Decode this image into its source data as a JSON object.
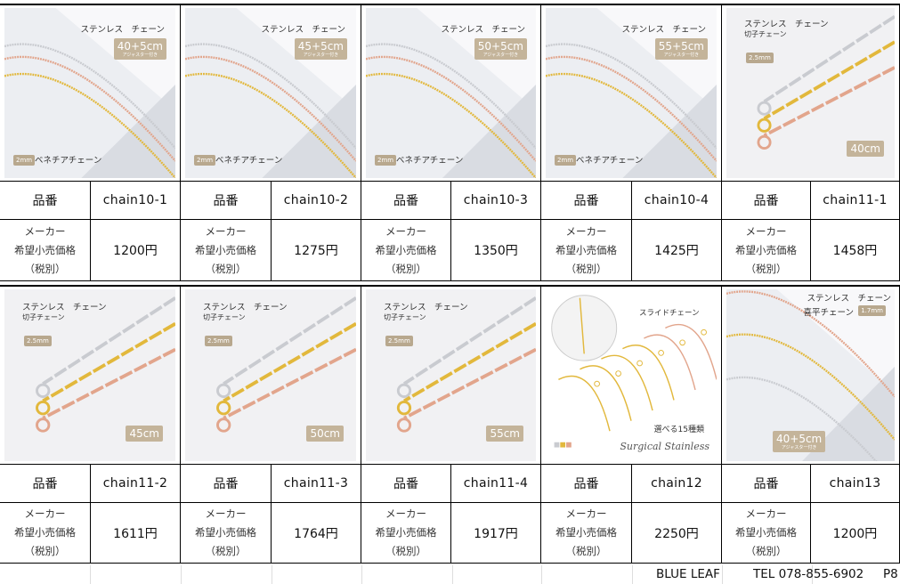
{
  "labels": {
    "item_no": "品番",
    "maker_line1": "メーカー",
    "maker_line2": "希望小売価格",
    "maker_line3": "（税別）"
  },
  "products": [
    {
      "code": "chain10-1",
      "price": "1200円",
      "image": {
        "style": "venetian",
        "title": "ステンレス　チェーン",
        "size": "40+5cm",
        "size_sub": "アジャスター付き",
        "mm": "2mm",
        "name": "ベネチアチェーン"
      }
    },
    {
      "code": "chain10-2",
      "price": "1275円",
      "image": {
        "style": "venetian",
        "title": "ステンレス　チェーン",
        "size": "45+5cm",
        "size_sub": "アジャスター付き",
        "mm": "2mm",
        "name": "ベネチアチェーン"
      }
    },
    {
      "code": "chain10-3",
      "price": "1350円",
      "image": {
        "style": "venetian",
        "title": "ステンレス　チェーン",
        "size": "50+5cm",
        "size_sub": "アジャスター付き",
        "mm": "2mm",
        "name": "ベネチアチェーン"
      }
    },
    {
      "code": "chain10-4",
      "price": "1425円",
      "image": {
        "style": "venetian",
        "title": "ステンレス　チェーン",
        "size": "55+5cm",
        "size_sub": "アジャスター付き",
        "mm": "2mm",
        "name": "ベネチアチェーン"
      }
    },
    {
      "code": "chain11-1",
      "price": "1458円",
      "image": {
        "style": "kiriko",
        "title": "ステンレス　チェーン",
        "name": "切子チェーン",
        "mm": "2.5mm",
        "size": "40cm"
      }
    },
    {
      "code": "chain11-2",
      "price": "1611円",
      "image": {
        "style": "kiriko",
        "title": "ステンレス　チェーン",
        "name": "切子チェーン",
        "mm": "2.5mm",
        "size": "45cm"
      }
    },
    {
      "code": "chain11-3",
      "price": "1764円",
      "image": {
        "style": "kiriko",
        "title": "ステンレス　チェーン",
        "name": "切子チェーン",
        "mm": "2.5mm",
        "size": "50cm"
      }
    },
    {
      "code": "chain11-4",
      "price": "1917円",
      "image": {
        "style": "kiriko",
        "title": "ステンレス　チェーン",
        "name": "切子チェーン",
        "mm": "2.5mm",
        "size": "55cm"
      }
    },
    {
      "code": "chain12",
      "price": "2250円",
      "image": {
        "style": "slide",
        "title": "スライドチェーン",
        "choice": "選べる15種類",
        "brand": "Surgical Stainless"
      }
    },
    {
      "code": "chain13",
      "price": "1200円",
      "image": {
        "style": "kihei",
        "title": "ステンレス　チェーン",
        "name": "喜平チェーン",
        "mm": "1.7mm",
        "size": "40+5cm",
        "size_sub": "アジャスター付き"
      }
    }
  ],
  "colors": {
    "silver": "#c9cbd0",
    "gold": "#e2b83c",
    "rose": "#e2a58c",
    "badge": "#c4b49a"
  },
  "footer": {
    "company": "BLUE LEAF",
    "tel": "TEL 078-855-6902",
    "page": "P8"
  }
}
